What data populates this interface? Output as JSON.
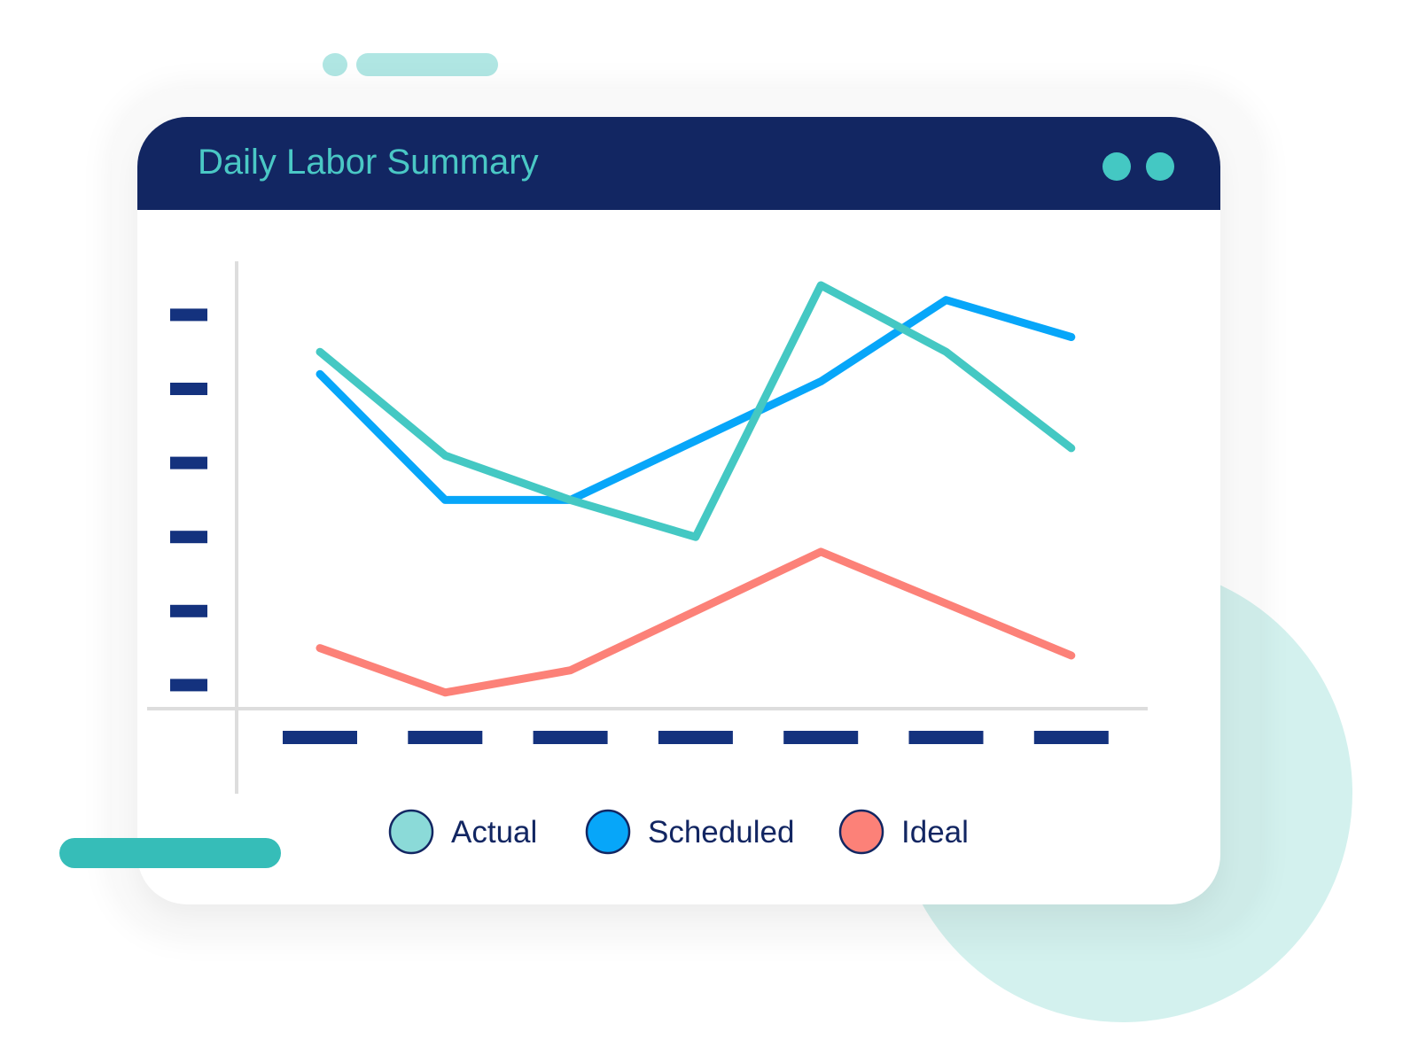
{
  "card": {
    "title": "Daily Labor Summary"
  },
  "colors": {
    "header": "#122662",
    "title": "#4ac8c5",
    "tick": "#14327e",
    "axis": "#dddddd",
    "actual": "#44c8c3",
    "scheduled": "#07a6f9",
    "ideal": "#fc8178",
    "legend_actual_fill": "#8bdad8"
  },
  "icons": [
    "window-dot-icon",
    "legend-swatch-icon"
  ],
  "chart_data": {
    "type": "line",
    "title": "Daily Labor Summary",
    "xlabel": "",
    "ylabel": "",
    "categories": [
      "",
      "",
      "",
      "",
      "",
      "",
      ""
    ],
    "ylim": [
      0,
      6
    ],
    "y_ticks": [
      1,
      2,
      3,
      4,
      5,
      6
    ],
    "tick_labels_visible": false,
    "grid": false,
    "legend_position": "bottom",
    "series": [
      {
        "name": "Actual",
        "key": "actual",
        "values": [
          5.5,
          4.1,
          3.5,
          3.0,
          6.4,
          5.5,
          4.2
        ]
      },
      {
        "name": "Scheduled",
        "key": "scheduled",
        "values": [
          5.2,
          3.5,
          3.5,
          4.3,
          5.1,
          6.2,
          5.7
        ]
      },
      {
        "name": "Ideal",
        "key": "ideal",
        "values": [
          1.5,
          0.9,
          1.2,
          2.0,
          2.8,
          2.1,
          1.4
        ]
      }
    ]
  }
}
